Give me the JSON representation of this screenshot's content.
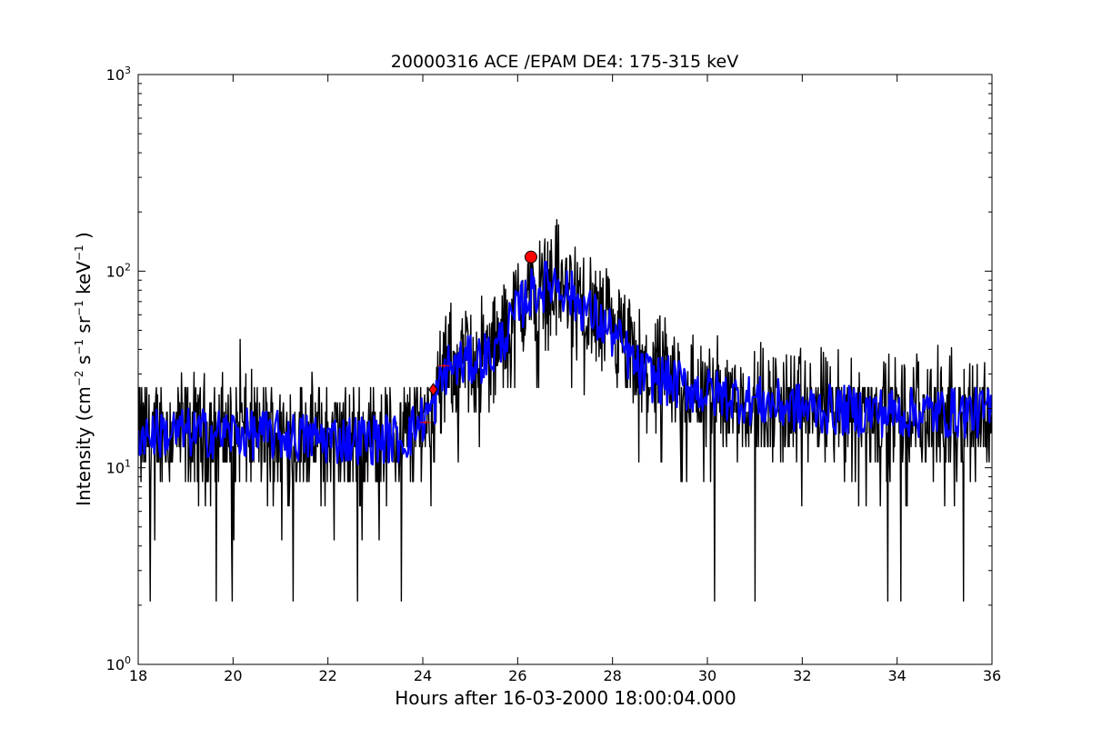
{
  "chart_data": {
    "type": "line",
    "title": "20000316 ACE /EPAM DE4: 175-315 keV",
    "xlabel": "Hours after 16-03-2000 18:00:04.000",
    "ylabel": {
      "base": "Intensity (cm",
      "sup1": "−2",
      "s": " s",
      "sup2": "−1",
      "sr": " sr",
      "sup3": "−1",
      "kev": " keV",
      "sup4": "−1",
      "end": " )"
    },
    "xlim": [
      18,
      36
    ],
    "ylim": [
      1,
      1000
    ],
    "yscale": "log",
    "x_ticks": [
      18,
      20,
      22,
      24,
      26,
      28,
      30,
      32,
      34,
      36
    ],
    "x_tick_labels": [
      "18",
      "20",
      "22",
      "24",
      "26",
      "28",
      "30",
      "32",
      "34",
      "36"
    ],
    "y_ticks": [
      1,
      10,
      100,
      1000
    ],
    "y_tick_labels": [
      {
        "base": "10",
        "exp": "0"
      },
      {
        "base": "10",
        "exp": "1"
      },
      {
        "base": "10",
        "exp": "2"
      },
      {
        "base": "10",
        "exp": "3"
      }
    ],
    "grid": false,
    "series": [
      {
        "color": "#000000",
        "style": "noisy-line",
        "envelope": [
          {
            "x": 18.0,
            "y": 15.0
          },
          {
            "x": 20.0,
            "y": 15.0
          },
          {
            "x": 22.0,
            "y": 14.0
          },
          {
            "x": 23.6,
            "y": 14.0
          },
          {
            "x": 24.2,
            "y": 20.0
          },
          {
            "x": 24.5,
            "y": 32.0
          },
          {
            "x": 25.5,
            "y": 38.0
          },
          {
            "x": 26.2,
            "y": 75.0
          },
          {
            "x": 26.8,
            "y": 90.0
          },
          {
            "x": 27.4,
            "y": 65.0
          },
          {
            "x": 28.0,
            "y": 48.0
          },
          {
            "x": 28.6,
            "y": 30.0
          },
          {
            "x": 30.0,
            "y": 24.0
          },
          {
            "x": 32.0,
            "y": 20.0
          },
          {
            "x": 34.0,
            "y": 19.0
          },
          {
            "x": 36.0,
            "y": 19.0
          }
        ],
        "spikes": [
          {
            "x": 18.25,
            "y": 2.1
          },
          {
            "x": 19.65,
            "y": 2.1
          },
          {
            "x": 19.98,
            "y": 2.1
          },
          {
            "x": 20.15,
            "y": 45.0
          },
          {
            "x": 21.27,
            "y": 2.1
          },
          {
            "x": 22.62,
            "y": 2.1
          },
          {
            "x": 23.55,
            "y": 2.1
          },
          {
            "x": 26.8,
            "y": 170.0
          },
          {
            "x": 30.15,
            "y": 2.1
          },
          {
            "x": 31.0,
            "y": 2.1
          },
          {
            "x": 33.8,
            "y": 2.1
          },
          {
            "x": 34.08,
            "y": 2.1
          },
          {
            "x": 35.4,
            "y": 2.1
          }
        ]
      },
      {
        "color": "#0000ff",
        "style": "smoothed-line",
        "envelope": [
          {
            "x": 18.0,
            "y": 15.0
          },
          {
            "x": 20.0,
            "y": 15.0
          },
          {
            "x": 22.0,
            "y": 14.0
          },
          {
            "x": 23.6,
            "y": 14.0
          },
          {
            "x": 24.2,
            "y": 20.0
          },
          {
            "x": 24.5,
            "y": 32.0
          },
          {
            "x": 25.5,
            "y": 38.0
          },
          {
            "x": 26.2,
            "y": 75.0
          },
          {
            "x": 26.8,
            "y": 90.0
          },
          {
            "x": 27.4,
            "y": 65.0
          },
          {
            "x": 28.0,
            "y": 48.0
          },
          {
            "x": 28.6,
            "y": 30.0
          },
          {
            "x": 30.0,
            "y": 24.0
          },
          {
            "x": 32.0,
            "y": 20.0
          },
          {
            "x": 34.0,
            "y": 19.0
          },
          {
            "x": 36.0,
            "y": 19.0
          }
        ]
      }
    ],
    "markers": [
      {
        "x": 24.22,
        "y": 25.0,
        "shape": "diamond",
        "color": "#ff0000"
      },
      {
        "x": 26.28,
        "y": 118.0,
        "shape": "circle",
        "color": "#ff0000"
      }
    ],
    "error_bars": [
      {
        "x": 24.05,
        "y": 17.0,
        "color": "#ff0000"
      },
      {
        "x": 24.45,
        "y": 33.0,
        "color": "#ff0000"
      }
    ]
  }
}
